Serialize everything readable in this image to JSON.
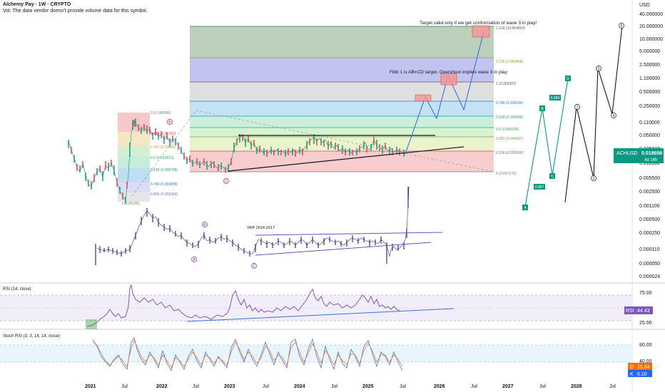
{
  "header": {
    "title": "Alchemy Pay · 1W · CRYPTO",
    "vol_note": "Vol: The data vendor doesn't provide volume data for this symbol."
  },
  "price_axis": {
    "currency": "USD",
    "ticks": [
      "40.000000",
      "20.000000",
      "10.000000",
      "5.000000",
      "2.500000",
      "1.100000",
      "0.500000",
      "0.250000",
      "0.110000",
      "0.050000",
      "0.025000",
      "0.011000",
      "0.005500",
      "0.002500",
      "0.001100",
      "0.000500",
      "0.000250",
      "0.000110",
      "0.000050",
      "0.000024"
    ],
    "last_symbol": "ACHUSD",
    "last_price": "0.019656",
    "countdown": "4d 16h",
    "accent_color": "#089981"
  },
  "time_axis": {
    "labels": [
      "2021",
      "Jul",
      "2022",
      "Jul",
      "2023",
      "Jul",
      "2024",
      "Jul",
      "2025",
      "Jul",
      "2026",
      "Jul",
      "2027",
      "Jul",
      "2028",
      "Jul"
    ]
  },
  "annotations": {
    "target_note": "Target valid only if we get conformation of wave 3 in play!",
    "fibb_note": "Fibb 1 is AB=CD target. Overshoot implies wave 3 in play",
    "xrp_note": "XRP 2014-2017"
  },
  "fib_right": [
    {
      "label": "1.618 (19.964824)",
      "color": "#4a6a4a"
    },
    {
      "label": "1.236 (1.069468)",
      "color": "#9c9a1f"
    },
    {
      "label": "1 (0.965307)",
      "color": "#5b5b5b"
    },
    {
      "label": "0.786 (0.338144)",
      "color": "#2f79c8"
    },
    {
      "label": "0.618 (0.168409)",
      "color": "#2b9c8a"
    },
    {
      "label": "0.5 (0.083226)",
      "color": "#3aa655"
    },
    {
      "label": "0.382 (0.049697)",
      "color": "#7aa63a"
    },
    {
      "label": "0.236 (0.022816)",
      "color": "#d94b4b"
    },
    {
      "label": "0 (0.007175)",
      "color": "#777777"
    }
  ],
  "fib_left": [
    {
      "label": "0 (0.180086)",
      "color": "#777777"
    },
    {
      "label": "0.236 (0.06762)",
      "color": "#d94b4b"
    },
    {
      "label": "0.382 (0.02380)",
      "color": "#c7a13a"
    },
    {
      "label": "0.5 (0.015615)",
      "color": "#3aa655"
    },
    {
      "label": "0.618 (0.008768)",
      "color": "#2b9c8a"
    },
    {
      "label": "0.786 (0.003855)",
      "color": "#2f79c8"
    },
    {
      "label": "0.886 (0.002364)",
      "color": "#7a6ad0"
    },
    {
      "label": "1 (0.00135)",
      "color": "#777777"
    }
  ],
  "wave_labels": {
    "ach": [
      "B",
      "C"
    ],
    "xrp": [
      "A",
      "B",
      "C"
    ],
    "green": [
      "A",
      "0.967",
      "B",
      "C",
      "5.389",
      "D"
    ],
    "black": [
      "1",
      "2",
      "3",
      "4",
      "5"
    ]
  },
  "rsi": {
    "title": "RSI (14, close)",
    "ticks": [
      "75.00",
      "25.00"
    ],
    "badge": "RSI",
    "value": "44.43",
    "color": "#7e57c2"
  },
  "stoch": {
    "title": "Stoch RSI (3, 3, 14, 14, close)",
    "ticks": [
      "80.00",
      "40.00"
    ],
    "d_label": "D",
    "d_value": "15.04",
    "k_label": "K",
    "k_value": "6.10",
    "d_color": "#ff6d00",
    "k_color": "#2962ff"
  },
  "chart_data": {
    "type": "line",
    "title": "Alchemy Pay · 1W · CRYPTO",
    "ylabel": "USD",
    "log_scale": true,
    "ylim": [
      2.4e-05,
      40
    ],
    "x": [
      "2020-09",
      "2021-01",
      "2021-04",
      "2021-07",
      "2021-08",
      "2021-11",
      "2022-01",
      "2022-04",
      "2022-07",
      "2022-11",
      "2023-01",
      "2023-02",
      "2023-04",
      "2023-07",
      "2023-10",
      "2024-01",
      "2024-03",
      "2024-06",
      "2024-09",
      "2024-12",
      "2025-02",
      "2025-05",
      "2025-06"
    ],
    "series": [
      {
        "values": [
          0.04,
          0.012,
          0.006,
          0.003,
          0.02,
          0.11,
          0.05,
          0.025,
          0.015,
          0.01,
          0.0075,
          0.007,
          0.045,
          0.02,
          0.02,
          0.03,
          0.04,
          0.022,
          0.02,
          0.04,
          0.03,
          0.022,
          0.0197
        ]
      }
    ]
  }
}
